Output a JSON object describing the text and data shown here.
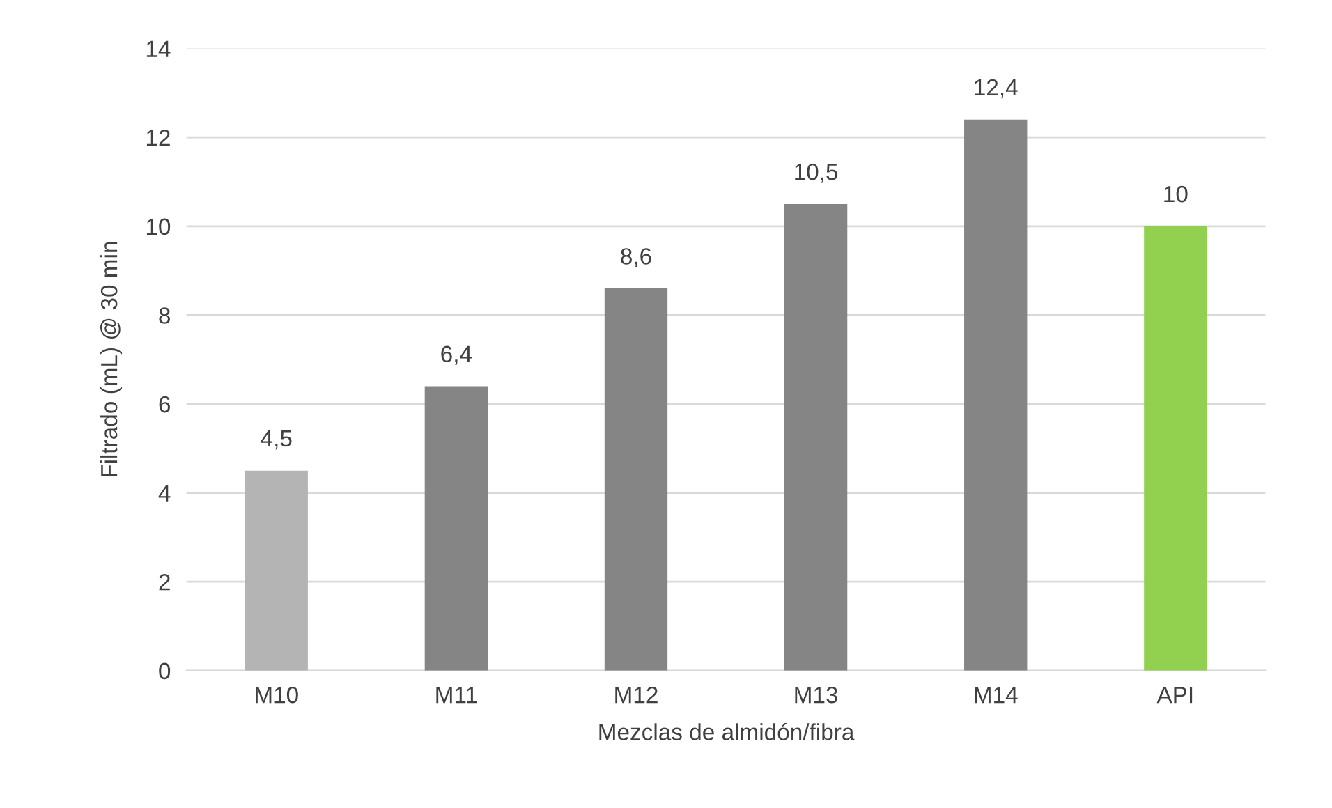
{
  "chart_data": {
    "type": "bar",
    "xlabel": "Mezclas de almidón/fibra",
    "ylabel": "Filtrado (mL) @ 30 min",
    "categories": [
      "M10",
      "M11",
      "M12",
      "M13",
      "M14",
      "API"
    ],
    "values": [
      4.5,
      6.4,
      8.6,
      10.5,
      12.4,
      10
    ],
    "value_labels": [
      "4,5",
      "6,4",
      "8,6",
      "10,5",
      "12,4",
      "10"
    ],
    "colors": [
      "#b4b4b4",
      "#858585",
      "#858585",
      "#858585",
      "#858585",
      "#92d050"
    ],
    "ylim": [
      0,
      14
    ],
    "yticks": [
      0,
      2,
      4,
      6,
      8,
      10,
      12,
      14
    ],
    "grid": "y"
  }
}
